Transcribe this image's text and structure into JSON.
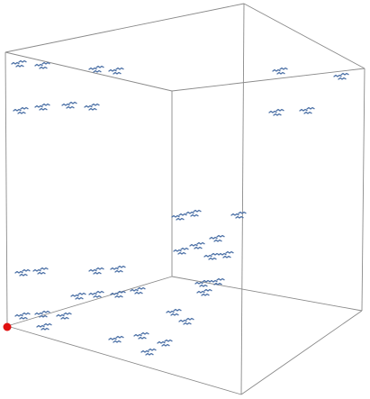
{
  "scene": {
    "type": "3d-scatter-cube",
    "point_color": "#4a6fa5",
    "origin_marker_color": "#e01010",
    "frame_color": "#8a8a8a",
    "background": "#ffffff",
    "cluster_count": 40,
    "icons": {
      "point_glyph": "squiggle-mark-icon",
      "origin_marker": "red-dot-icon"
    }
  }
}
